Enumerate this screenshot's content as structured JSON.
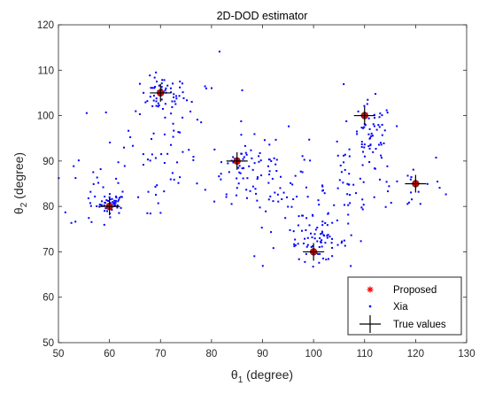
{
  "chart_data": {
    "type": "scatter",
    "title": "2D-DOD estimator",
    "xlabel": {
      "symbol": "θ",
      "sub": "1",
      "unit": " (degree)"
    },
    "ylabel": {
      "symbol": "θ",
      "sub": "2",
      "unit": " (degree)"
    },
    "xlim": [
      50,
      130
    ],
    "ylim": [
      50,
      120
    ],
    "xticks": [
      50,
      60,
      70,
      80,
      90,
      100,
      110,
      120,
      130
    ],
    "yticks": [
      50,
      60,
      70,
      80,
      90,
      100,
      110,
      120
    ],
    "grid": false,
    "legend_position": "bottom-right",
    "colors": {
      "proposed": "#ff0000",
      "xia": "#0000ff",
      "true": "#000000",
      "marker_fill": "#8b1a1a"
    },
    "series": [
      {
        "name": "Proposed",
        "marker": "asterisk",
        "points": [
          [
            60,
            80
          ],
          [
            70,
            105
          ],
          [
            85,
            90
          ],
          [
            100,
            70
          ],
          [
            110,
            100
          ],
          [
            120,
            85
          ]
        ]
      },
      {
        "name": "Xia",
        "marker": "dot",
        "clusters": [
          {
            "center": [
              60.5,
              80.5
            ],
            "spread": [
              1.2,
              1.1
            ],
            "count": 45
          },
          {
            "center": [
              70.5,
              104.5
            ],
            "spread": [
              2.2,
              2.0
            ],
            "count": 55
          },
          {
            "center": [
              67,
              92
            ],
            "spread": [
              5.0,
              8.0
            ],
            "count": 45
          },
          {
            "center": [
              57,
              84
            ],
            "spread": [
              4.0,
              6.0
            ],
            "count": 25
          },
          {
            "center": [
              86,
              89
            ],
            "spread": [
              3.0,
              3.0
            ],
            "count": 45
          },
          {
            "center": [
              92,
              86
            ],
            "spread": [
              3.5,
              5.0
            ],
            "count": 50
          },
          {
            "center": [
              101,
              72
            ],
            "spread": [
              2.8,
              2.0
            ],
            "count": 60
          },
          {
            "center": [
              98,
              78
            ],
            "spread": [
              4.0,
              6.0
            ],
            "count": 30
          },
          {
            "center": [
              107,
              84
            ],
            "spread": [
              2.5,
              7.0
            ],
            "count": 40
          },
          {
            "center": [
              111.5,
              95
            ],
            "spread": [
              2.0,
              4.0
            ],
            "count": 60
          },
          {
            "center": [
              119,
              85
            ],
            "spread": [
              4.5,
              3.0
            ],
            "count": 25
          },
          {
            "center": [
              78,
              95
            ],
            "spread": [
              6.0,
              8.0
            ],
            "count": 25
          }
        ]
      },
      {
        "name": "True values",
        "marker": "plus",
        "points": [
          [
            60,
            80
          ],
          [
            70,
            105
          ],
          [
            85,
            90
          ],
          [
            100,
            70
          ],
          [
            110,
            100
          ],
          [
            120,
            85
          ]
        ]
      }
    ]
  }
}
